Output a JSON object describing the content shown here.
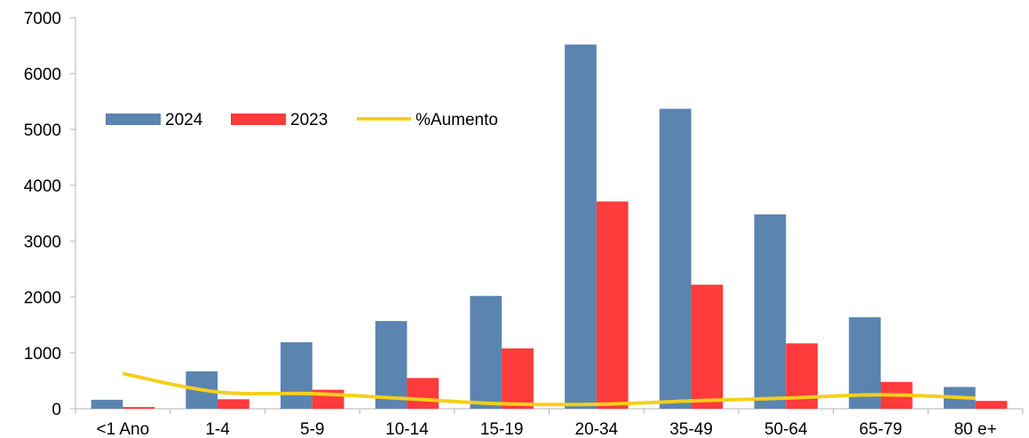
{
  "chart_data": {
    "type": "bar",
    "title": "",
    "xlabel": "",
    "ylabel": "",
    "ylim": [
      0,
      7000
    ],
    "yticks": [
      0,
      1000,
      2000,
      3000,
      4000,
      5000,
      6000,
      7000
    ],
    "grid": false,
    "legend_position": "top-left",
    "categories": [
      "<1 Ano",
      "1-4",
      "5-9",
      "10-14",
      "15-19",
      "20-34",
      "35-49",
      "50-64",
      "65-79",
      "80 e+"
    ],
    "series": [
      {
        "name": "2024",
        "type": "bar",
        "color": "#5b84b1",
        "values": [
          160,
          670,
          1190,
          1570,
          2020,
          6520,
          5370,
          3480,
          1640,
          390
        ]
      },
      {
        "name": "2023",
        "type": "bar",
        "color": "#ff3b3b",
        "values": [
          30,
          170,
          340,
          550,
          1080,
          3710,
          2220,
          1170,
          480,
          140
        ]
      },
      {
        "name": "%Aumento",
        "type": "line",
        "color": "#f5cf1a",
        "values": [
          630,
          300,
          270,
          180,
          90,
          80,
          140,
          190,
          250,
          190
        ]
      }
    ]
  }
}
